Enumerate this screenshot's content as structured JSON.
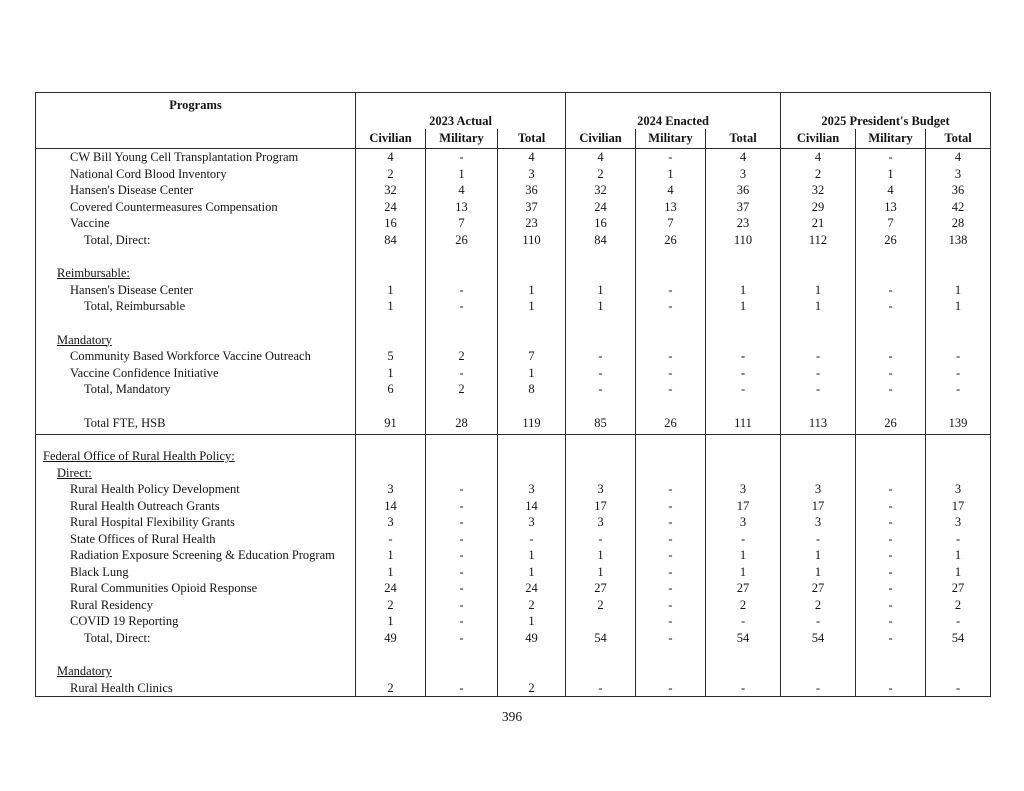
{
  "page_number": "396",
  "table": {
    "programs_header": "Programs",
    "groups": [
      {
        "label": "2023 Actual"
      },
      {
        "label": "2024 Enacted"
      },
      {
        "label": "2025 President's Budget"
      }
    ],
    "sub_headers": [
      "Civilian",
      "Military",
      "Total"
    ],
    "rows": [
      {
        "label": "CW Bill Young Cell Transplantation Program",
        "indent": 2,
        "style": "normal",
        "values": [
          "4",
          "-",
          "4",
          "4",
          "-",
          "4",
          "4",
          "-",
          "4"
        ]
      },
      {
        "label": "National Cord Blood Inventory",
        "indent": 2,
        "style": "normal",
        "values": [
          "2",
          "1",
          "3",
          "2",
          "1",
          "3",
          "2",
          "1",
          "3"
        ]
      },
      {
        "label": "Hansen's Disease Center",
        "indent": 2,
        "style": "normal",
        "values": [
          "32",
          "4",
          "36",
          "32",
          "4",
          "36",
          "32",
          "4",
          "36"
        ]
      },
      {
        "label": "Covered Countermeasures Compensation",
        "indent": 2,
        "style": "normal",
        "values": [
          "24",
          "13",
          "37",
          "24",
          "13",
          "37",
          "29",
          "13",
          "42"
        ]
      },
      {
        "label": "Vaccine",
        "indent": 2,
        "style": "normal",
        "values": [
          "16",
          "7",
          "23",
          "16",
          "7",
          "23",
          "21",
          "7",
          "28"
        ]
      },
      {
        "label": "Total, Direct:",
        "indent": 3,
        "style": "total",
        "values": [
          "84",
          "26",
          "110",
          "84",
          "26",
          "110",
          "112",
          "26",
          "138"
        ]
      },
      {
        "style": "spacer"
      },
      {
        "label": "Reimbursable:",
        "indent": 1,
        "style": "section"
      },
      {
        "label": "Hansen's Disease Center",
        "indent": 2,
        "style": "normal",
        "values": [
          "1",
          "-",
          "1",
          "1",
          "-",
          "1",
          "1",
          "-",
          "1"
        ]
      },
      {
        "label": "Total, Reimbursable",
        "indent": 3,
        "style": "total",
        "values": [
          "1",
          "-",
          "1",
          "1",
          "-",
          "1",
          "1",
          "-",
          "1"
        ]
      },
      {
        "style": "spacer"
      },
      {
        "label": "Mandatory",
        "indent": 1,
        "style": "section"
      },
      {
        "label": "Community Based Workforce Vaccine Outreach",
        "indent": 2,
        "style": "normal",
        "values": [
          "5",
          "2",
          "7",
          "-",
          "-",
          "-",
          "-",
          "-",
          "-"
        ],
        "bold_cols": [
          5
        ]
      },
      {
        "label": "Vaccine Confidence Initiative",
        "indent": 2,
        "style": "normal",
        "values": [
          "1",
          "-",
          "1",
          "-",
          "-",
          "-",
          "-",
          "-",
          "-"
        ],
        "bold_cols": [
          5
        ]
      },
      {
        "label": "Total, Mandatory",
        "indent": 3,
        "style": "total",
        "values": [
          "6",
          "2",
          "8",
          "-",
          "-",
          "-",
          "-",
          "-",
          "-"
        ]
      },
      {
        "style": "spacer"
      },
      {
        "label": "Total FTE, HSB",
        "indent": 3,
        "style": "total",
        "rule_below": true,
        "values": [
          "91",
          "28",
          "119",
          "85",
          "26",
          "111",
          "113",
          "26",
          "139"
        ]
      },
      {
        "label": "Federal Office of Rural Health Policy:",
        "indent": 0,
        "style": "section-bold",
        "pad_top": true
      },
      {
        "label": "Direct:",
        "indent": 1,
        "style": "section"
      },
      {
        "label": "Rural Health Policy Development",
        "indent": 2,
        "style": "normal",
        "values": [
          "3",
          "-",
          "3",
          "3",
          "-",
          "3",
          "3",
          "-",
          "3"
        ]
      },
      {
        "label": "Rural Health Outreach Grants",
        "indent": 2,
        "style": "normal",
        "values": [
          "14",
          "-",
          "14",
          "17",
          "-",
          "17",
          "17",
          "-",
          "17"
        ]
      },
      {
        "label": "Rural Hospital Flexibility Grants",
        "indent": 2,
        "style": "normal",
        "values": [
          "3",
          "-",
          "3",
          "3",
          "-",
          "3",
          "3",
          "-",
          "3"
        ]
      },
      {
        "label": "State Offices of Rural Health",
        "indent": 2,
        "style": "normal",
        "values": [
          "-",
          "-",
          "-",
          "-",
          "-",
          "-",
          "-",
          "-",
          "-"
        ]
      },
      {
        "label": "Radiation Exposure Screening & Education Program",
        "indent": 2,
        "style": "normal",
        "values": [
          "1",
          "-",
          "1",
          "1",
          "-",
          "1",
          "1",
          "-",
          "1"
        ]
      },
      {
        "label": "Black Lung",
        "indent": 2,
        "style": "normal",
        "values": [
          "1",
          "-",
          "1",
          "1",
          "-",
          "1",
          "1",
          "-",
          "1"
        ]
      },
      {
        "label": "Rural Communities Opioid Response",
        "indent": 2,
        "style": "normal",
        "values": [
          "24",
          "-",
          "24",
          "27",
          "-",
          "27",
          "27",
          "-",
          "27"
        ]
      },
      {
        "label": "Rural Residency",
        "indent": 2,
        "style": "normal",
        "values": [
          "2",
          "-",
          "2",
          "2",
          "-",
          "2",
          "2",
          "-",
          "2"
        ]
      },
      {
        "label": "COVID 19 Reporting",
        "indent": 2,
        "style": "normal",
        "values": [
          "1",
          "-",
          "1",
          "",
          "-",
          "-",
          "-",
          "-",
          "-"
        ]
      },
      {
        "label": "Total, Direct:",
        "indent": 3,
        "style": "total",
        "values": [
          "49",
          "-",
          "49",
          "54",
          "-",
          "54",
          "54",
          "-",
          "54"
        ]
      },
      {
        "style": "spacer"
      },
      {
        "label": "Mandatory",
        "indent": 1,
        "style": "section"
      },
      {
        "label": "Rural Health Clinics",
        "indent": 2,
        "style": "normal",
        "values": [
          "2",
          "-",
          "2",
          "-",
          "-",
          "-",
          "-",
          "-",
          "-"
        ]
      }
    ]
  }
}
